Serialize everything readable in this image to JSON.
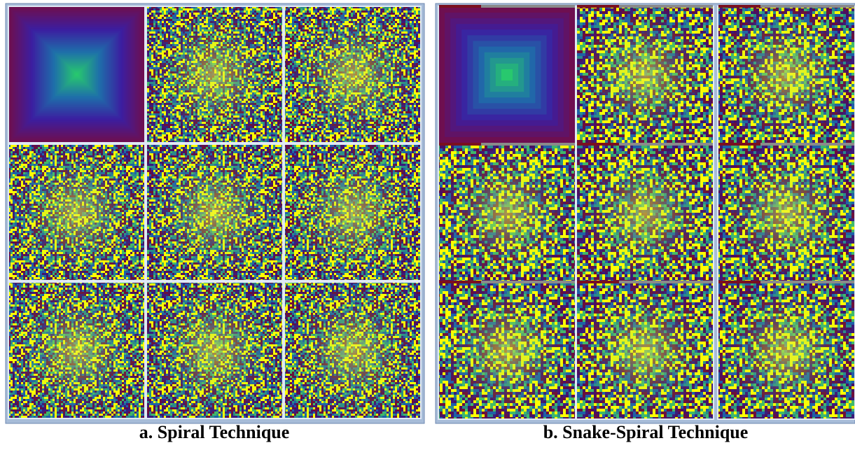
{
  "panels": [
    {
      "caption": "a. Spiral Technique"
    },
    {
      "caption": "b. Snake-Spiral Technique"
    }
  ]
}
